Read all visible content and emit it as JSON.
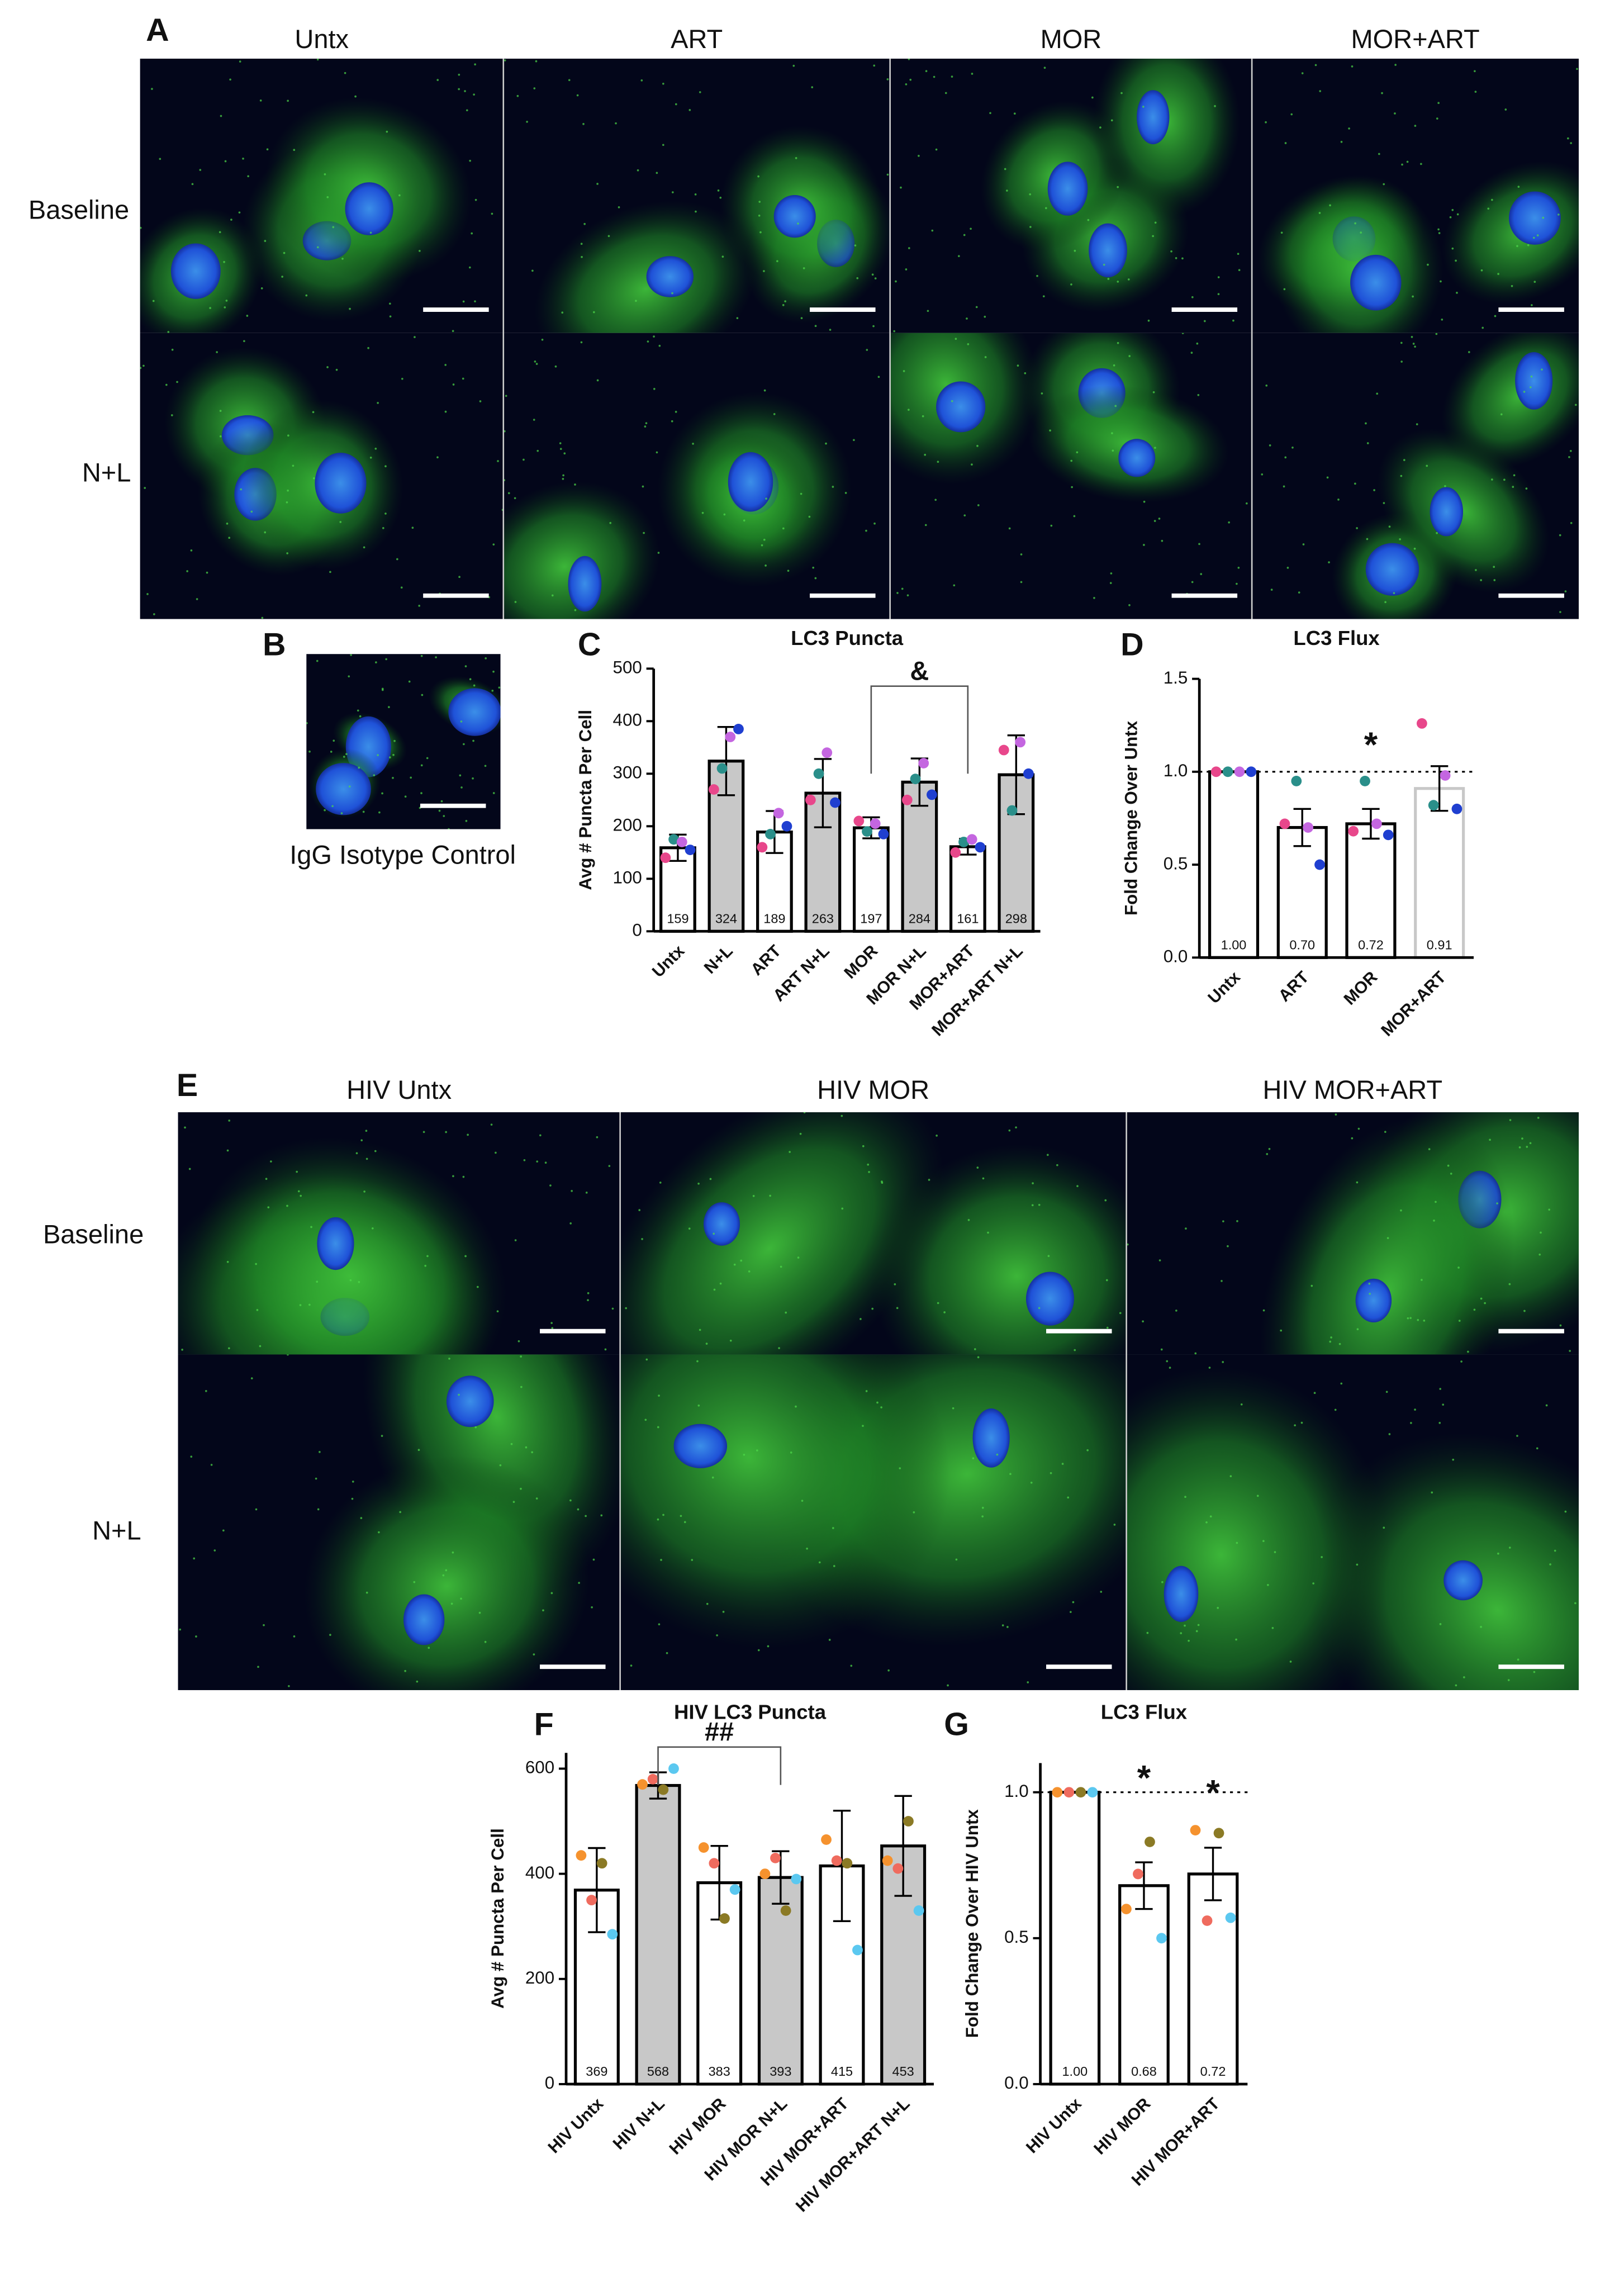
{
  "panels": {
    "A": {
      "label": "A",
      "columns": [
        "Untx",
        "ART",
        "MOR",
        "MOR+ART"
      ],
      "rows": [
        "Baseline",
        "N+L"
      ]
    },
    "B": {
      "label": "B",
      "caption": "IgG Isotype Control"
    },
    "E": {
      "label": "E",
      "columns": [
        "HIV Untx",
        "HIV MOR",
        "HIV MOR+ART"
      ],
      "rows": [
        "Baseline",
        "N+L"
      ]
    }
  },
  "chart_data": [
    {
      "type": "bar",
      "panel_label": "C",
      "title": "LC3 Puncta",
      "y_label": "Avg # Puncta Per Cell",
      "categories": [
        "Untx",
        "N+L",
        "ART",
        "ART N+L",
        "MOR",
        "MOR N+L",
        "MOR+ART",
        "MOR+ART N+L"
      ],
      "values": [
        159,
        324,
        189,
        263,
        197,
        284,
        161,
        298
      ],
      "errors": [
        25,
        65,
        40,
        65,
        20,
        45,
        15,
        75
      ],
      "colors": [
        "#ffffff",
        "#c8c8c8",
        "#ffffff",
        "#c8c8c8",
        "#ffffff",
        "#c8c8c8",
        "#ffffff",
        "#c8c8c8"
      ],
      "points": [
        {
          "color": "#e8478b",
          "values": [
            140,
            270,
            160,
            250,
            210,
            250,
            150,
            345
          ]
        },
        {
          "color": "#2a8f8a",
          "values": [
            175,
            310,
            185,
            300,
            190,
            290,
            170,
            230
          ]
        },
        {
          "color": "#c466e0",
          "values": [
            170,
            370,
            225,
            340,
            205,
            320,
            175,
            360
          ]
        },
        {
          "color": "#1f3fd0",
          "values": [
            155,
            385,
            200,
            245,
            185,
            260,
            160,
            300
          ]
        }
      ],
      "annotations": [
        "&"
      ],
      "ylim": [
        0,
        500
      ],
      "yticks": [
        0,
        100,
        200,
        300,
        400,
        500
      ]
    },
    {
      "type": "bar",
      "panel_label": "D",
      "title": "LC3 Flux",
      "y_label": "Fold Change Over Untx",
      "categories": [
        "Untx",
        "ART",
        "MOR",
        "MOR+ART"
      ],
      "values": [
        1.0,
        0.7,
        0.72,
        0.91
      ],
      "value_labels": [
        "1.00",
        "0.70",
        "0.72",
        "0.91"
      ],
      "errors": [
        0,
        0.1,
        0.08,
        0.12
      ],
      "colors": [
        "#ffffff",
        "#ffffff",
        "#ffffff",
        "#ffffff"
      ],
      "edge_colors": [
        "#000000",
        "#000000",
        "#000000",
        "#c8c8c8"
      ],
      "points": [
        {
          "color": "#e8478b",
          "values": [
            1,
            0.72,
            0.68,
            1.26
          ]
        },
        {
          "color": "#2a8f8a",
          "values": [
            1,
            0.95,
            0.95,
            0.82
          ]
        },
        {
          "color": "#c466e0",
          "values": [
            1,
            0.7,
            0.72,
            0.98
          ]
        },
        {
          "color": "#1f3fd0",
          "values": [
            1,
            0.5,
            0.66,
            0.8
          ]
        }
      ],
      "reference_line": 1,
      "annotations": [
        "*"
      ],
      "ylim": [
        0,
        1.5
      ],
      "yticks": [
        {
          "value": 0,
          "label": "0.0"
        },
        {
          "value": 0.5,
          "label": "0.5"
        },
        {
          "value": 1,
          "label": "1.0"
        },
        {
          "value": 1.5,
          "label": "1.5"
        }
      ]
    },
    {
      "type": "bar",
      "panel_label": "F",
      "title": "HIV LC3 Puncta",
      "y_label": "Avg # Puncta Per Cell",
      "categories": [
        "HIV Untx",
        "HIV N+L",
        "HIV MOR",
        "HIV MOR N+L",
        "HIV MOR+ART",
        "HIV MOR+ART N+L"
      ],
      "values": [
        369,
        568,
        383,
        393,
        415,
        453
      ],
      "errors": [
        80,
        25,
        70,
        50,
        105,
        95
      ],
      "colors": [
        "#ffffff",
        "#c8c8c8",
        "#ffffff",
        "#c8c8c8",
        "#ffffff",
        "#c8c8c8"
      ],
      "points": [
        {
          "color": "#f5922e",
          "values": [
            435,
            570,
            450,
            400,
            465,
            425
          ]
        },
        {
          "color": "#ef6b5e",
          "values": [
            350,
            580,
            420,
            430,
            425,
            410
          ]
        },
        {
          "color": "#8b7a25",
          "values": [
            420,
            560,
            315,
            330,
            420,
            500
          ]
        },
        {
          "color": "#5bc8f0",
          "values": [
            285,
            600,
            370,
            390,
            255,
            330
          ]
        }
      ],
      "annotations": [
        "##"
      ],
      "ylim": [
        0,
        630
      ],
      "yticks": [
        0,
        200,
        400,
        600
      ]
    },
    {
      "type": "bar",
      "panel_label": "G",
      "title": "LC3 Flux",
      "y_label": "Fold Change Over HIV Untx",
      "categories": [
        "HIV Untx",
        "HIV MOR",
        "HIV MOR+ART"
      ],
      "values": [
        1.0,
        0.68,
        0.72
      ],
      "value_labels": [
        "1.00",
        "0.68",
        "0.72"
      ],
      "errors": [
        0,
        0.08,
        0.09
      ],
      "colors": [
        "#ffffff",
        "#ffffff",
        "#ffffff"
      ],
      "points": [
        {
          "color": "#f5922e",
          "values": [
            1,
            0.6,
            0.87
          ]
        },
        {
          "color": "#ef6b5e",
          "values": [
            1,
            0.72,
            0.56
          ]
        },
        {
          "color": "#8b7a25",
          "values": [
            1,
            0.83,
            0.86
          ]
        },
        {
          "color": "#5bc8f0",
          "values": [
            1,
            0.5,
            0.57
          ]
        }
      ],
      "reference_line": 1,
      "annotations": [
        "*",
        "*"
      ],
      "ylim": [
        0,
        1.1
      ],
      "yticks": [
        {
          "value": 0,
          "label": "0.0"
        },
        {
          "value": 0.5,
          "label": "0.5"
        },
        {
          "value": 1,
          "label": "1.0"
        }
      ]
    }
  ]
}
